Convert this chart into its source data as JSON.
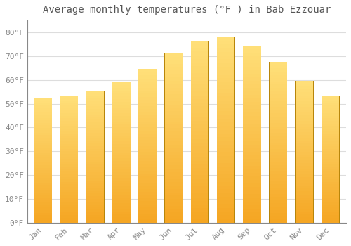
{
  "title": "Average monthly temperatures (°F ) in Bab Ezzouar",
  "months": [
    "Jan",
    "Feb",
    "Mar",
    "Apr",
    "May",
    "Jun",
    "Jul",
    "Aug",
    "Sep",
    "Oct",
    "Nov",
    "Dec"
  ],
  "values": [
    52.5,
    53.5,
    55.5,
    59.0,
    64.5,
    71.0,
    76.5,
    78.0,
    74.5,
    67.5,
    59.5,
    53.5
  ],
  "bar_color_bottom": "#F5A623",
  "bar_color_top": "#FFE07A",
  "bar_edge_color": "#B8860B",
  "background_color": "#FFFFFF",
  "grid_color": "#DDDDDD",
  "ytick_labels": [
    "0°F",
    "10°F",
    "20°F",
    "30°F",
    "40°F",
    "50°F",
    "60°F",
    "70°F",
    "80°F"
  ],
  "ytick_values": [
    0,
    10,
    20,
    30,
    40,
    50,
    60,
    70,
    80
  ],
  "ylim": [
    0,
    85
  ],
  "title_fontsize": 10,
  "tick_fontsize": 8,
  "tick_color": "#888888",
  "title_color": "#555555",
  "bar_width": 0.7,
  "n_grad": 50
}
